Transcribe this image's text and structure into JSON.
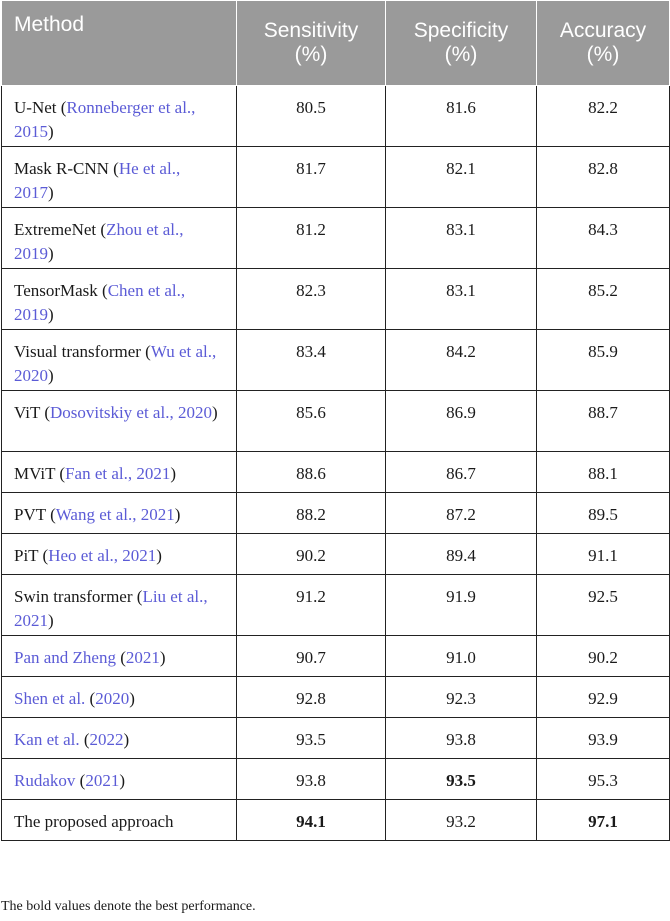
{
  "header": {
    "method": "Method",
    "sensitivity": [
      "Sensitivity",
      "(%)"
    ],
    "specificity": [
      "Specificity",
      "(%)"
    ],
    "accuracy": [
      "Accuracy",
      "(%)"
    ]
  },
  "rows": [
    {
      "name": "U-Net",
      "cite": "Ronneberger et al., 2015",
      "sensitivity": "80.5",
      "specificity": "81.6",
      "accuracy": "82.2"
    },
    {
      "name": "Mask R-CNN",
      "cite": "He et al., 2017",
      "sensitivity": "81.7",
      "specificity": "82.1",
      "accuracy": "82.8"
    },
    {
      "name": "ExtremeNet",
      "cite": "Zhou et al., 2019",
      "sensitivity": "81.2",
      "specificity": "83.1",
      "accuracy": "84.3"
    },
    {
      "name": "TensorMask",
      "cite": "Chen et al., 2019",
      "sensitivity": "82.3",
      "specificity": "83.1",
      "accuracy": "85.2"
    },
    {
      "name": "Visual transformer",
      "cite": "Wu et al., 2020",
      "sensitivity": "83.4",
      "specificity": "84.2",
      "accuracy": "85.9"
    },
    {
      "name": "ViT",
      "cite": "Dosovitskiy et al., 2020",
      "sensitivity": "85.6",
      "specificity": "86.9",
      "accuracy": "88.7"
    },
    {
      "name": "MViT",
      "cite": "Fan et al., 2021",
      "sensitivity": "88.6",
      "specificity": "86.7",
      "accuracy": "88.1"
    },
    {
      "name": "PVT",
      "cite": "Wang et al., 2021",
      "sensitivity": "88.2",
      "specificity": "87.2",
      "accuracy": "89.5"
    },
    {
      "name": "PiT",
      "cite": "Heo et al., 2021",
      "sensitivity": "90.2",
      "specificity": "89.4",
      "accuracy": "91.1"
    },
    {
      "name": "Swin transformer",
      "cite": "Liu et al., 2021",
      "sensitivity": "91.2",
      "specificity": "91.9",
      "accuracy": "92.5"
    },
    {
      "author": "Pan and Zheng",
      "year": "2021",
      "sensitivity": "90.7",
      "specificity": "91.0",
      "accuracy": "90.2"
    },
    {
      "author": "Shen et al.",
      "year": "2020",
      "sensitivity": "92.8",
      "specificity": "92.3",
      "accuracy": "92.9"
    },
    {
      "author": "Kan et al.",
      "year": "2022",
      "sensitivity": "93.5",
      "specificity": "93.8",
      "accuracy": "93.9"
    },
    {
      "author": "Rudakov",
      "year": "2021",
      "sensitivity": "93.8",
      "specificity": "93.5",
      "accuracy": "95.3"
    },
    {
      "name": "The proposed approach",
      "sensitivity": "94.1",
      "specificity": "93.2",
      "accuracy": "97.1"
    }
  ],
  "footnote": "The bold values denote the best performance."
}
